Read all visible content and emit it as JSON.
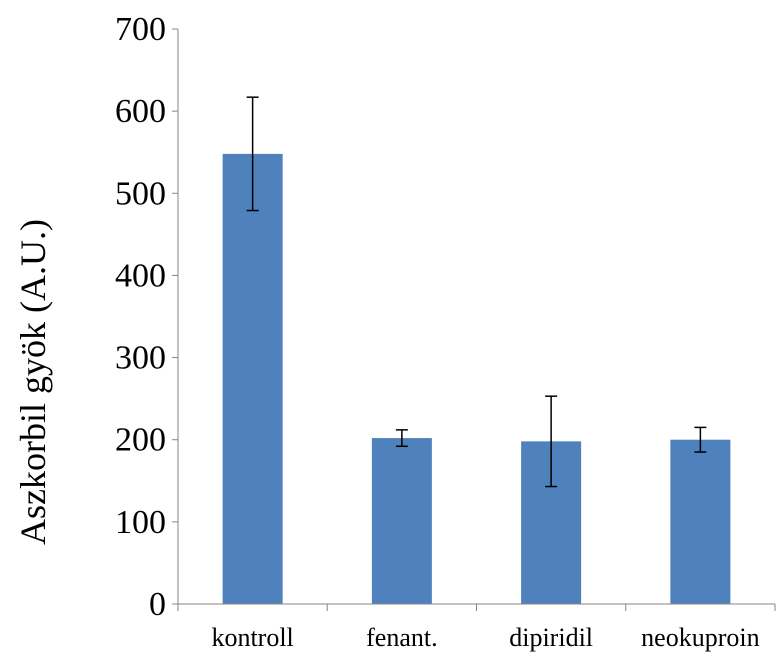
{
  "chart_data": {
    "type": "bar",
    "title": "",
    "xlabel": "",
    "ylabel": "Aszkorbil gyök (A.U.)",
    "ylim": [
      0,
      700
    ],
    "yticks": [
      "0",
      "100",
      "200",
      "300",
      "400",
      "500",
      "600",
      "700"
    ],
    "grid": false,
    "legend": "none",
    "categories": [
      "kontroll",
      "fenant.",
      "dipiridil",
      "neokuproin"
    ],
    "values": [
      548,
      202,
      198,
      200
    ],
    "errors": [
      69,
      10,
      55,
      15
    ],
    "bar_color": "#4F81BD"
  }
}
